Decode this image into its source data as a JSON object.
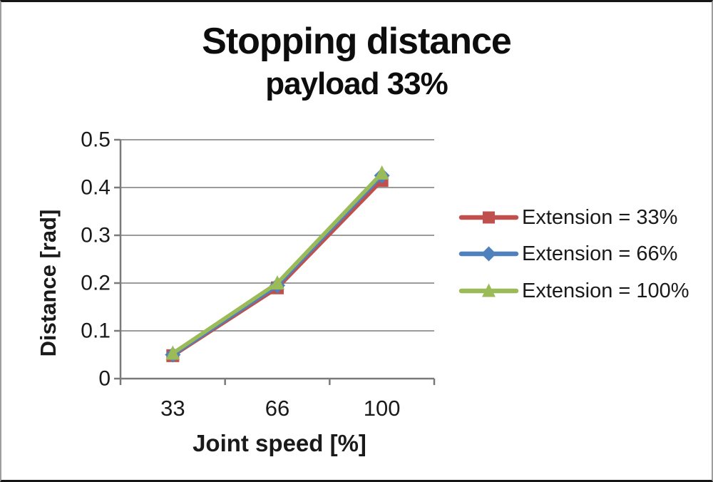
{
  "chart_data": {
    "type": "line",
    "title": "Stopping distance",
    "subtitle": "payload 33%",
    "xlabel": "Joint speed [%]",
    "ylabel": "Distance [rad]",
    "categories": [
      "33",
      "66",
      "100"
    ],
    "y_ticks": [
      0,
      0.1,
      0.2,
      0.3,
      0.4,
      0.5
    ],
    "y_tick_labels": [
      "0",
      "0.1",
      "0.2",
      "0.3",
      "0.4",
      "0.5"
    ],
    "ylim": [
      0,
      0.5
    ],
    "grid": "horizontal",
    "legend_position": "right",
    "series": [
      {
        "name": "Extension = 33%",
        "marker": "square",
        "color": "#C0504D",
        "values": [
          0.048,
          0.19,
          0.415
        ]
      },
      {
        "name": "Extension = 66%",
        "marker": "diamond",
        "color": "#4F81BD",
        "values": [
          0.05,
          0.195,
          0.425
        ]
      },
      {
        "name": "Extension = 100%",
        "marker": "triangle",
        "color": "#9BBB59",
        "values": [
          0.053,
          0.2,
          0.43
        ]
      }
    ]
  },
  "theme": {
    "gridline_color": "#9b9b9b",
    "axis_color": "#7a7a7a",
    "text_color": "#1a1a1a",
    "background": "#ffffff"
  }
}
